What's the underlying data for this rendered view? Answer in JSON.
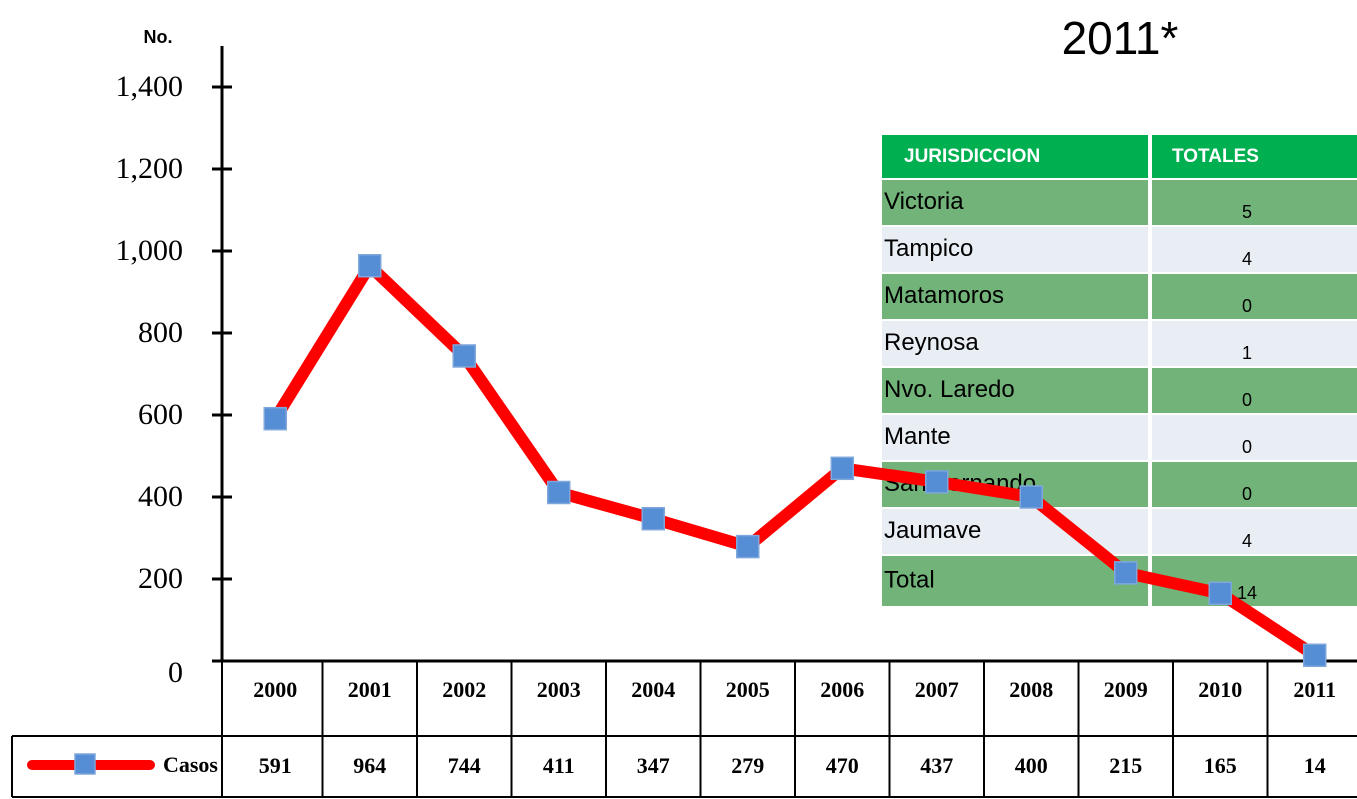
{
  "chart_data": {
    "type": "line",
    "title": "2011*",
    "ylabel": "No.",
    "categories": [
      "2000",
      "2001",
      "2002",
      "2003",
      "2004",
      "2005",
      "2006",
      "2007",
      "2008",
      "2009",
      "2010",
      "2011"
    ],
    "series": [
      {
        "name": "Casos",
        "color": "#ff0000",
        "marker_color": "#558ed5",
        "values": [
          591,
          964,
          744,
          411,
          347,
          279,
          470,
          437,
          400,
          215,
          165,
          14
        ]
      }
    ],
    "ylim": [
      0,
      1500
    ],
    "yticks": [
      0,
      200,
      400,
      600,
      800,
      {
        "value": 1000,
        "label": "1,000"
      },
      {
        "value": 1200,
        "label": "1,200"
      },
      {
        "value": 1400,
        "label": "1,400"
      }
    ],
    "grid": false
  },
  "inset_table": {
    "header": [
      "JURISDICCION",
      "TOTALES"
    ],
    "rows": [
      [
        "Victoria",
        5
      ],
      [
        "Tampico",
        4
      ],
      [
        "Matamoros",
        0
      ],
      [
        "Reynosa",
        1
      ],
      [
        "Nvo. Laredo",
        0
      ],
      [
        "Mante",
        0
      ],
      [
        "San Fernando",
        0
      ],
      [
        "Jaumave",
        4
      ],
      [
        "Total",
        14
      ]
    ]
  }
}
